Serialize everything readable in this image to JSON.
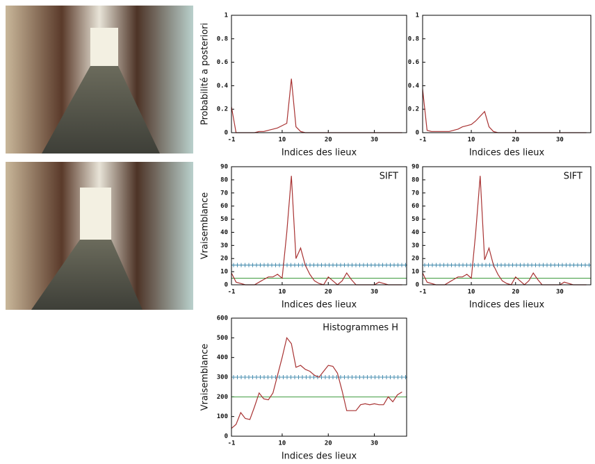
{
  "chart_data": [
    {
      "type": "line",
      "y_label": "Probabilité a posteriori",
      "x_label": "Indices des lieux",
      "x": [
        -1,
        0,
        1,
        2,
        3,
        4,
        5,
        6,
        7,
        8,
        9,
        10,
        11,
        12,
        13,
        14,
        15,
        16,
        17,
        18,
        19,
        20,
        21,
        22,
        23,
        24,
        25,
        26,
        27,
        28,
        29,
        30,
        31,
        32,
        33,
        34,
        35,
        36
      ],
      "values": [
        0.22,
        0,
        0,
        0,
        0,
        0,
        0.01,
        0.01,
        0.02,
        0.03,
        0.04,
        0.06,
        0.08,
        0.46,
        0.05,
        0.01,
        0,
        0,
        0,
        0,
        0,
        0,
        0,
        0,
        0,
        0,
        0,
        0,
        0,
        0,
        0,
        0,
        0,
        0,
        0,
        0,
        0,
        0
      ],
      "color": "#a83232",
      "xlim": [
        -1,
        37
      ],
      "xticks": [
        -1,
        10,
        20,
        30
      ],
      "ylim": [
        0,
        1
      ],
      "yticks": [
        0,
        0.2,
        0.4,
        0.6,
        0.8,
        1
      ]
    },
    {
      "type": "line",
      "x_label": "Indices des lieux",
      "x": [
        -1,
        0,
        1,
        2,
        3,
        4,
        5,
        6,
        7,
        8,
        9,
        10,
        11,
        12,
        13,
        14,
        15,
        16,
        17,
        18,
        19,
        20,
        21,
        22,
        23,
        24,
        25,
        26,
        27,
        28,
        29,
        30,
        31,
        32,
        33,
        34,
        35,
        36
      ],
      "values": [
        0.37,
        0.02,
        0.01,
        0.01,
        0.01,
        0.01,
        0.01,
        0.02,
        0.03,
        0.05,
        0.06,
        0.07,
        0.1,
        0.14,
        0.18,
        0.05,
        0.01,
        0,
        0,
        0,
        0,
        0,
        0,
        0,
        0,
        0,
        0,
        0,
        0,
        0,
        0,
        0,
        0,
        0,
        0,
        0,
        0,
        0
      ],
      "color": "#a83232",
      "xlim": [
        -1,
        37
      ],
      "xticks": [
        -1,
        10,
        20,
        30
      ],
      "ylim": [
        0,
        1
      ],
      "yticks": [
        0,
        0.2,
        0.4,
        0.6,
        0.8,
        1
      ]
    },
    {
      "type": "line",
      "y_label": "Vraisemblance",
      "x_label": "Indices des lieux",
      "annotation": "SIFT",
      "x": [
        -1,
        0,
        1,
        2,
        3,
        4,
        5,
        6,
        7,
        8,
        9,
        10,
        11,
        12,
        13,
        14,
        15,
        16,
        17,
        18,
        19,
        20,
        21,
        22,
        23,
        24,
        25,
        26,
        27,
        28,
        29,
        30,
        31,
        32,
        33,
        34,
        35,
        36
      ],
      "values": [
        9,
        2,
        1,
        0,
        0,
        0,
        2,
        4,
        6,
        6,
        8,
        5,
        40,
        83,
        20,
        28,
        15,
        8,
        3,
        1,
        0,
        6,
        3,
        0,
        3,
        9,
        4,
        0,
        0,
        0,
        0,
        0,
        2,
        1,
        0,
        0,
        0,
        0
      ],
      "color": "#a83232",
      "xlim": [
        -1,
        37
      ],
      "xticks": [
        -1,
        10,
        20,
        30
      ],
      "ylim": [
        0,
        90
      ],
      "yticks": [
        0,
        10,
        20,
        30,
        40,
        50,
        60,
        70,
        80,
        90
      ],
      "reference_lines": [
        {
          "value": 15,
          "color": "#4a8fb0",
          "marker": "+"
        },
        {
          "value": 5,
          "color": "#3c9a3c"
        }
      ]
    },
    {
      "type": "line",
      "x_label": "Indices des lieux",
      "annotation": "SIFT",
      "x": [
        -1,
        0,
        1,
        2,
        3,
        4,
        5,
        6,
        7,
        8,
        9,
        10,
        11,
        12,
        13,
        14,
        15,
        16,
        17,
        18,
        19,
        20,
        21,
        22,
        23,
        24,
        25,
        26,
        27,
        28,
        29,
        30,
        31,
        32,
        33,
        34,
        35,
        36
      ],
      "values": [
        9,
        2,
        1,
        0,
        0,
        0,
        2,
        4,
        6,
        6,
        8,
        5,
        40,
        83,
        19,
        28,
        15,
        8,
        3,
        1,
        0,
        6,
        3,
        0,
        3,
        9,
        4,
        0,
        0,
        0,
        0,
        0,
        2,
        1,
        0,
        0,
        0,
        0
      ],
      "color": "#a83232",
      "xlim": [
        -1,
        37
      ],
      "xticks": [
        -1,
        10,
        20,
        30
      ],
      "ylim": [
        0,
        90
      ],
      "yticks": [
        0,
        10,
        20,
        30,
        40,
        50,
        60,
        70,
        80,
        90
      ],
      "reference_lines": [
        {
          "value": 15,
          "color": "#4a8fb0",
          "marker": "+"
        },
        {
          "value": 5,
          "color": "#3c9a3c"
        }
      ]
    },
    {
      "type": "line",
      "y_label": "Vraisemblance",
      "x_label": "Indices des lieux",
      "annotation": "Histogrammes H",
      "x": [
        -1,
        0,
        1,
        2,
        3,
        4,
        5,
        6,
        7,
        8,
        9,
        10,
        11,
        12,
        13,
        14,
        15,
        16,
        17,
        18,
        19,
        20,
        21,
        22,
        23,
        24,
        25,
        26,
        27,
        28,
        29,
        30,
        31,
        32,
        33,
        34,
        35,
        36
      ],
      "values": [
        40,
        60,
        120,
        90,
        85,
        150,
        220,
        190,
        185,
        220,
        310,
        400,
        500,
        470,
        350,
        360,
        340,
        330,
        310,
        300,
        330,
        360,
        355,
        320,
        230,
        130,
        130,
        130,
        160,
        165,
        160,
        165,
        160,
        160,
        200,
        175,
        210,
        225
      ],
      "color": "#a83232",
      "xlim": [
        -1,
        37
      ],
      "xticks": [
        -1,
        10,
        20,
        30
      ],
      "ylim": [
        0,
        600
      ],
      "yticks": [
        0,
        100,
        200,
        300,
        400,
        500,
        600
      ],
      "reference_lines": [
        {
          "value": 300,
          "color": "#4a8fb0",
          "marker": "+"
        },
        {
          "value": 200,
          "color": "#3c9a3c"
        }
      ]
    }
  ]
}
